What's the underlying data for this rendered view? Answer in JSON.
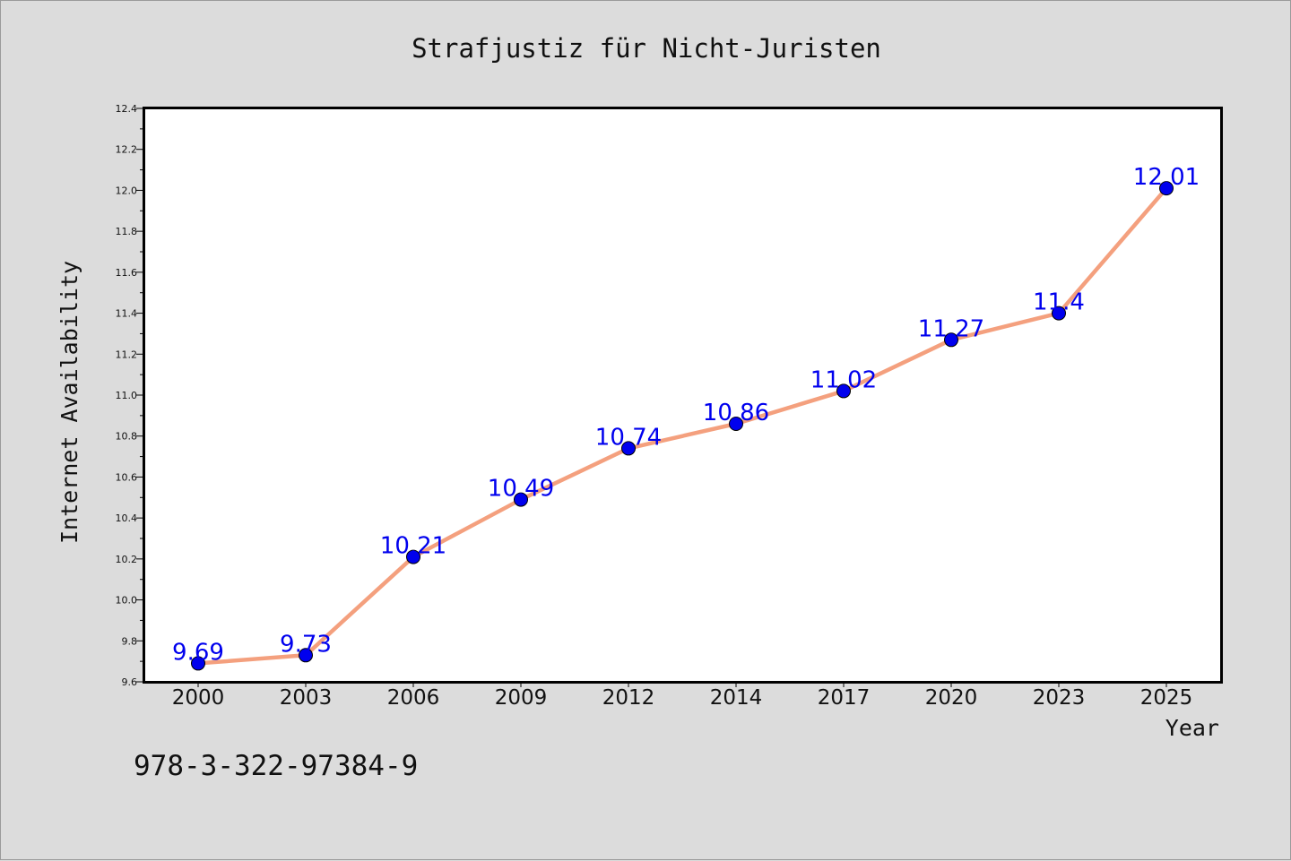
{
  "chart_data": {
    "type": "line",
    "title": "Strafjustiz für Nicht-Juristen",
    "xlabel": "Year",
    "ylabel": "Internet Availability",
    "categories": [
      "2000",
      "2003",
      "2006",
      "2009",
      "2012",
      "2014",
      "2017",
      "2020",
      "2023",
      "2025"
    ],
    "series": [
      {
        "values": [
          9.69,
          9.73,
          10.21,
          10.49,
          10.74,
          10.86,
          11.02,
          11.27,
          11.4,
          12.01
        ],
        "labels": [
          "9.69",
          "9.73",
          "10.21",
          "10.49",
          "10.74",
          "10.86",
          "11.02",
          "11.27",
          "11.4",
          "12.01"
        ],
        "line_color": "#f4a07e",
        "marker_color": "#0000ee"
      }
    ],
    "ylim": [
      9.6,
      12.4
    ],
    "yticks": [
      "9.6",
      "9.8",
      "10.0",
      "10.2",
      "10.4",
      "10.6",
      "10.8",
      "11.0",
      "11.2",
      "11.4",
      "11.6",
      "11.8",
      "12.0",
      "12.2",
      "12.4"
    ],
    "grid": false,
    "legend": "none"
  },
  "footer": {
    "isbn": "978-3-322-97384-9"
  },
  "colors": {
    "background": "#dcdcdc",
    "plot_background": "#ffffff",
    "line": "#f4a07e",
    "marker": "#0000ee",
    "label": "#0000ee"
  }
}
